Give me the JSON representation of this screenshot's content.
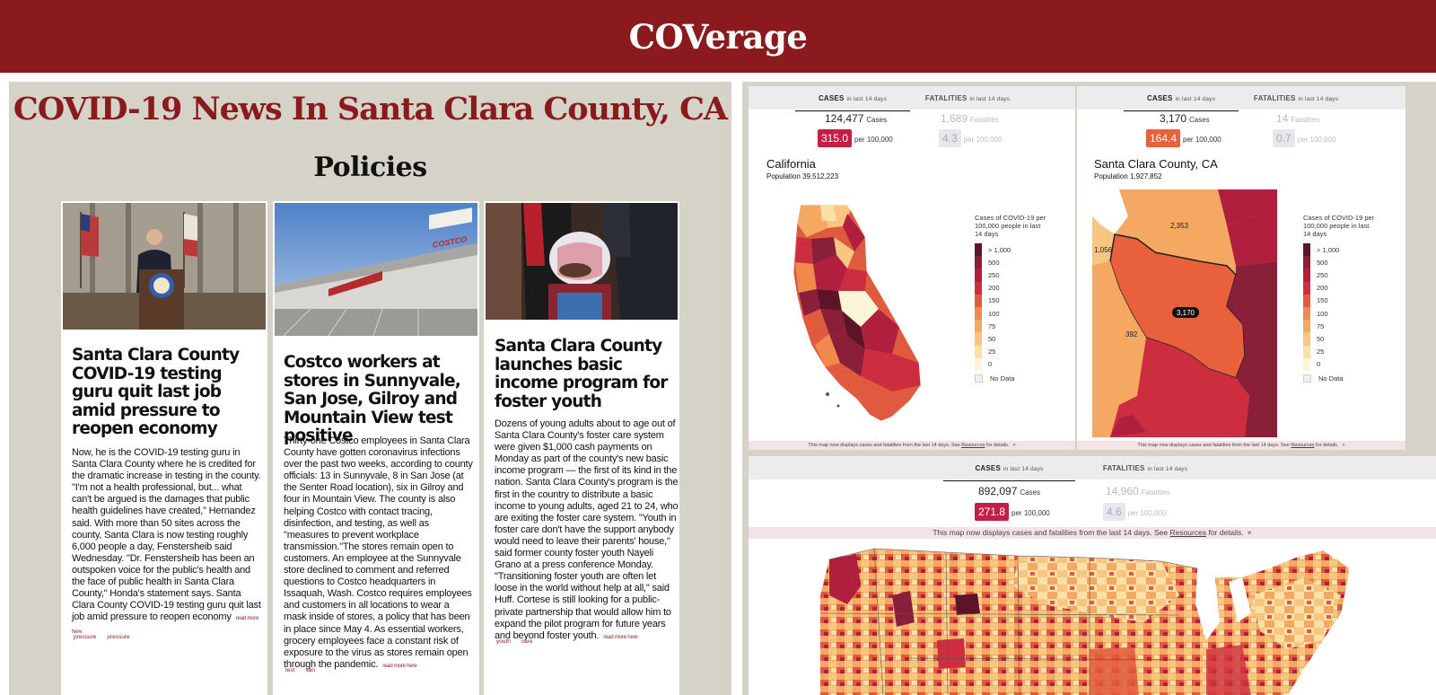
{
  "header": {
    "brand": "COVerage"
  },
  "page": {
    "title": "COVID-19 News In Santa Clara County, CA",
    "section": "Policies"
  },
  "articles": [
    {
      "headline": "Santa Clara County COVID-19 testing guru quit last job amid pressure to reopen economy",
      "body": "Now, he is the COVID-19 testing guru in Santa Clara County where he is credited for the dramatic increase in testing in the county. \"I'm not a health professional, but... what can't be argued is the damages that public health guidelines have created,\" Hernandez said. With more than 50 sites across the county, Santa Clara is now testing roughly 6,000 people a day, Fenstersheib said Wednesday. \"Dr. Fenstersheib has been an outspoken voice for the public's health and the face of public health in Santa Clara County,\" Honda's statement says. Santa Clara County COVID-19 testing guru quit last job amid pressure to reopen economy",
      "read_more": "read more here",
      "tags": [
        "pressure",
        "pressure"
      ]
    },
    {
      "headline": "Costco workers at stores in Sunnyvale, San Jose, Gilroy and Mountain View test positive",
      "body": "Thirty-one Costco employees in Santa Clara County have gotten coronavirus infections over the past two weeks, according to county officials: 13 in Sunnyvale, 8 in San Jose (at the Senter Road location), six in Gilroy and four in Mountain View. The county is also helping Costco with contact tracing, disinfection, and testing, as well as \"measures to prevent workplace transmission.\"The stores remain open to customers. An employee at the Sunnyvale store declined to comment and referred questions to Costco headquarters in Issaquah, Wash. Costco requires employees and customers in all locations to wear a mask inside of stores, a policy that has been in place since May 4. As essential workers, grocery employees face a constant risk of exposure to the virus as stores remain open through the pandemic.",
      "read_more": "read more here",
      "tags": [
        "test",
        "san"
      ],
      "sign_text": "COSTCO"
    },
    {
      "headline": "Santa Clara County launches basic income program for foster youth",
      "body": "Dozens of young adults about to age out of Santa Clara County's foster care system were given $1,000 cash payments on Monday as part of the county's new basic income program — the first of its kind in the nation. Santa Clara County's program is the first in the country to distribute a basic income to young adults, aged 21 to 24, who are exiting the foster care system. \"Youth in foster care don't have the support anybody would need to leave their parents' house,\" said former county foster youth Nayeli Grano at a press conference Monday. \"Transitioning foster youth are often let loose in the world without help at all,\" said Huff. Cortese is still looking for a public-private partnership that would allow him to expand the pilot program for future years and beyond foster youth.",
      "read_more": "read more here",
      "tags": [
        "youth",
        "care"
      ]
    }
  ],
  "trackers": {
    "tabs": {
      "cases": "CASES",
      "fatalities": "FATALITIES",
      "suffix": "in last 14 days"
    },
    "labels": {
      "cases": "Cases",
      "fatalities": "Fatalities",
      "per": "per 100,000"
    },
    "california": {
      "cases": "124,477",
      "fatalities": "1,689",
      "cases_rate": "315.0",
      "fatal_rate": "4.3",
      "name": "California",
      "population": "Population 39,512,223",
      "rate_color": "#c41e45"
    },
    "santa_clara": {
      "cases": "3,170",
      "fatalities": "14",
      "cases_rate": "164.4",
      "fatal_rate": "0.7",
      "name": "Santa Clara County, CA",
      "population": "Population 1,927,852",
      "rate_color": "#e8613c",
      "map_labels": {
        "center": "3,170",
        "north": "2,353",
        "west": "1,056",
        "south": "392"
      }
    },
    "us": {
      "cases": "892,097",
      "fatalities": "14,960",
      "cases_rate": "271.8",
      "fatal_rate": "4.6",
      "rate_color": "#c41e45"
    },
    "legend": {
      "title": "Cases of COVID-19 per 100,000 people in last 14 days",
      "items": [
        {
          "label": "> 1,000",
          "color": "#5c1528"
        },
        {
          "label": "500",
          "color": "#8a1f3a"
        },
        {
          "label": "250",
          "color": "#b11f3f"
        },
        {
          "label": "200",
          "color": "#cc2e40"
        },
        {
          "label": "150",
          "color": "#e05a3f"
        },
        {
          "label": "100",
          "color": "#ef8a4c"
        },
        {
          "label": "75",
          "color": "#f4a861"
        },
        {
          "label": "50",
          "color": "#f8c681"
        },
        {
          "label": "25",
          "color": "#fbe0a8"
        },
        {
          "label": "0",
          "color": "#fdf5d9"
        }
      ],
      "no_data": "No Data"
    },
    "note": {
      "pre": "This map now displays cases and fatalities from the last 14 days. See ",
      "link": "Resources",
      "post": " for details.",
      "close": "×"
    }
  }
}
